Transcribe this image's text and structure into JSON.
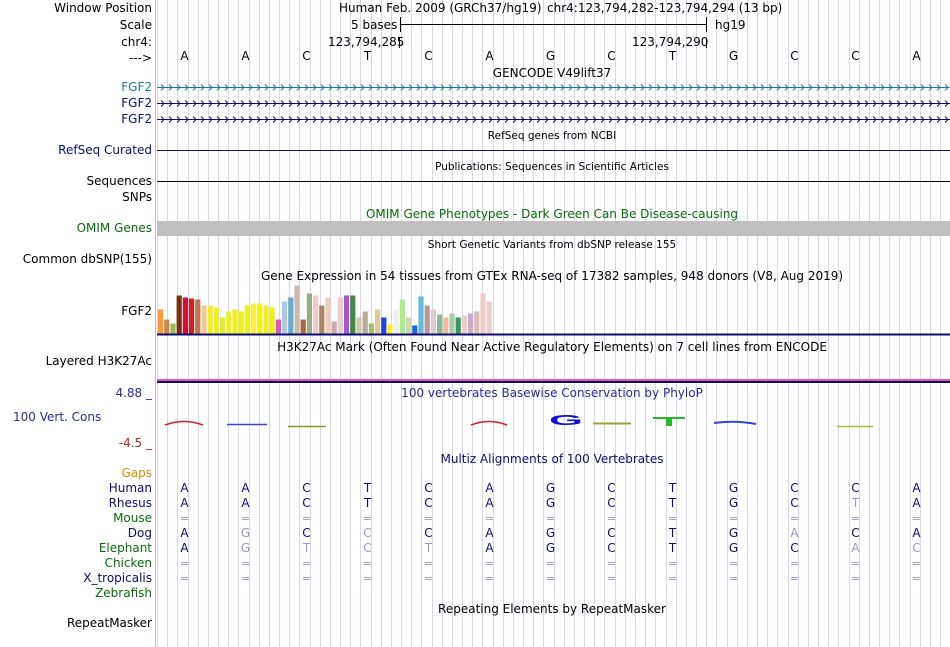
{
  "ruler": {
    "window_position_label": "Window Position",
    "scale_label": "Scale",
    "chrom_label": "chr4:",
    "arrow_label": "--->",
    "assembly_text": "Human Feb. 2009 (GRCh37/hg19)",
    "position_text": "chr4:123,794,282-123,794,294 (13 bp)",
    "scale_text": "5 bases",
    "db_text": "hg19",
    "coord_left": "123,794,285",
    "coord_right": "123,794,290",
    "bases": [
      "A",
      "A",
      "C",
      "T",
      "C",
      "A",
      "G",
      "C",
      "T",
      "G",
      "C",
      "C",
      "A"
    ]
  },
  "gencode": {
    "title": "GENCODE V49lift37",
    "genes": [
      "FGF2",
      "FGF2",
      "FGF2"
    ],
    "colors": [
      "#1a78a8",
      "#0d0d6e",
      "#0d0d6e"
    ]
  },
  "refseq": {
    "title": "RefSeq genes from NCBI",
    "label": "RefSeq Curated"
  },
  "publications": {
    "title": "Publications: Sequences in Scientific Articles",
    "label": "Sequences"
  },
  "snps": {
    "label": "SNPs"
  },
  "omim": {
    "title": "OMIM Gene Phenotypes - Dark Green Can Be Disease-causing",
    "label": "OMIM Genes"
  },
  "dbsnp": {
    "title": "Short Genetic Variants from dbSNP release 155",
    "label": "Common dbSNP(155)"
  },
  "gtex": {
    "title": "Gene Expression in 54 tissues from GTEx RNA-seq of 17382 samples, 948 donors (V8, Aug 2019)",
    "gene": "FGF2",
    "values": [
      24,
      14,
      10,
      38,
      36,
      35,
      34,
      28,
      28,
      26,
      16,
      22,
      24,
      22,
      28,
      30,
      30,
      28,
      26,
      14,
      32,
      36,
      48,
      14,
      40,
      38,
      28,
      36,
      12,
      36,
      38,
      38,
      16,
      22,
      10,
      24,
      16,
      9,
      24,
      34,
      16,
      8,
      37,
      28,
      24,
      19,
      16,
      20,
      16,
      18,
      20,
      22,
      40,
      32
    ],
    "colors": [
      "#ff9933",
      "#cc8844",
      "#99bb55",
      "#773311",
      "#cc1133",
      "#cc2222",
      "#bb7755",
      "#eecc99",
      "#eeee22",
      "#eeee22",
      "#ddee33",
      "#eeee22",
      "#eeee22",
      "#eeee22",
      "#eeee22",
      "#ffee44",
      "#eeee22",
      "#eeee22",
      "#eeee22",
      "#dd55bb",
      "#aaccdd",
      "#66aacc",
      "#ccbbaa",
      "#aa6644",
      "#99aa88",
      "#eecccc",
      "#aa8866",
      "#eeccbb",
      "#ccaaaa",
      "#eecccc",
      "#aa55cc",
      "#448844",
      "#ccccaa",
      "#bbaa99",
      "#aabb77",
      "#ddcc99",
      "#2244dd",
      "#ffee22",
      "#eeeeee",
      "#aaee88",
      "#ccddaa",
      "#2266dd",
      "#66bbdd",
      "#bb9999",
      "#ddcccc",
      "#88bb99",
      "#eebb99",
      "#aaccaa",
      "#339955",
      "#eecccc",
      "#ccaacc",
      "#ddbbbb",
      "#eecccc",
      "#eecccc"
    ]
  },
  "h3k27ac": {
    "title": "H3K27Ac Mark (Often Found Near Active Regulatory Elements) on 7 cell lines from ENCODE",
    "label": "Layered H3K27Ac"
  },
  "phylop": {
    "title": "100 vertebrates Basewise Conservation by PhyloP",
    "label": "100 Vert. Cons",
    "max_label": "4.88 _",
    "min_label": "-4.5 _"
  },
  "multiz": {
    "title": "Multiz Alignments of 100 Vertebrates",
    "gaps_label": "Gaps",
    "species": [
      {
        "name": "Human",
        "color": "#0d0d6e",
        "bases": [
          "A",
          "A",
          "C",
          "T",
          "C",
          "A",
          "G",
          "C",
          "T",
          "G",
          "C",
          "C",
          "A"
        ]
      },
      {
        "name": "Rhesus",
        "color": "#0d0d6e",
        "bases": [
          "A",
          "A",
          "C",
          "T",
          "C",
          "A",
          "G",
          "C",
          "T",
          "G",
          "C",
          "T",
          "A"
        ]
      },
      {
        "name": "Mouse",
        "color": "#0a6b0a",
        "bases": [
          "=",
          "=",
          "=",
          "=",
          "=",
          "=",
          "=",
          "=",
          "=",
          "=",
          "=",
          "=",
          "="
        ]
      },
      {
        "name": "Dog",
        "color": "#0d0d6e",
        "bases": [
          "A",
          "G",
          "C",
          "C",
          "C",
          "A",
          "G",
          "C",
          "T",
          "G",
          "A",
          "C",
          "A"
        ]
      },
      {
        "name": "Elephant",
        "color": "#0a6b0a",
        "bases": [
          "A",
          "G",
          "T",
          "C",
          "T",
          "A",
          "G",
          "C",
          "T",
          "G",
          "C",
          "A",
          "C"
        ]
      },
      {
        "name": "Chicken",
        "color": "#0a6b0a",
        "bases": [
          "=",
          "=",
          "=",
          "=",
          "=",
          "=",
          "=",
          "=",
          "=",
          "=",
          "=",
          "=",
          "="
        ]
      },
      {
        "name": "X_tropicalis",
        "color": "#0d0d6e",
        "bases": [
          "=",
          "=",
          "=",
          "=",
          "=",
          "=",
          "=",
          "=",
          "=",
          "=",
          "=",
          "=",
          "="
        ]
      },
      {
        "name": "Zebrafish",
        "color": "#0a6b0a",
        "bases": []
      }
    ]
  },
  "repeatmasker": {
    "title": "Repeating Elements by RepeatMasker",
    "label": "RepeatMasker"
  }
}
